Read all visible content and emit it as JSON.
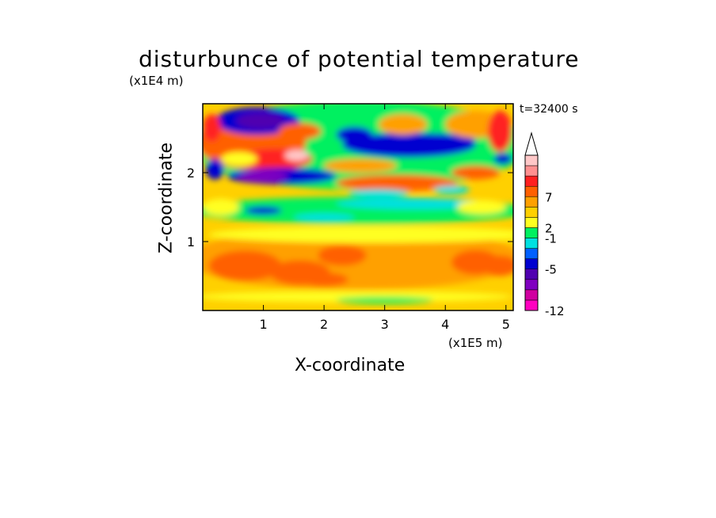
{
  "chart_data": {
    "type": "heatmap",
    "title": "disturbunce of potential temperature",
    "xlabel": "X-coordinate",
    "ylabel": "Z-coordinate",
    "x_unit": "(x1E5 m)",
    "y_unit": "(x1E4 m)",
    "time_label": "t=32400 s",
    "xlim": [
      0,
      5.12
    ],
    "ylim": [
      0,
      3.0
    ],
    "x_ticks": [
      "1",
      "2",
      "3",
      "4",
      "5"
    ],
    "y_ticks": [
      "1",
      "2"
    ],
    "colorbar": {
      "tick_labels": [
        "7",
        "2",
        "-1",
        "-5",
        "-12"
      ],
      "colors": [
        "#ff00c0",
        "#d000a0",
        "#8000c0",
        "#5000b0",
        "#0000d0",
        "#0060ff",
        "#00e0e0",
        "#00f060",
        "#ffff20",
        "#ffd000",
        "#ffa000",
        "#ff6000",
        "#ff2020",
        "#ff9090",
        "#ffc8c8"
      ],
      "extend": "max"
    }
  }
}
